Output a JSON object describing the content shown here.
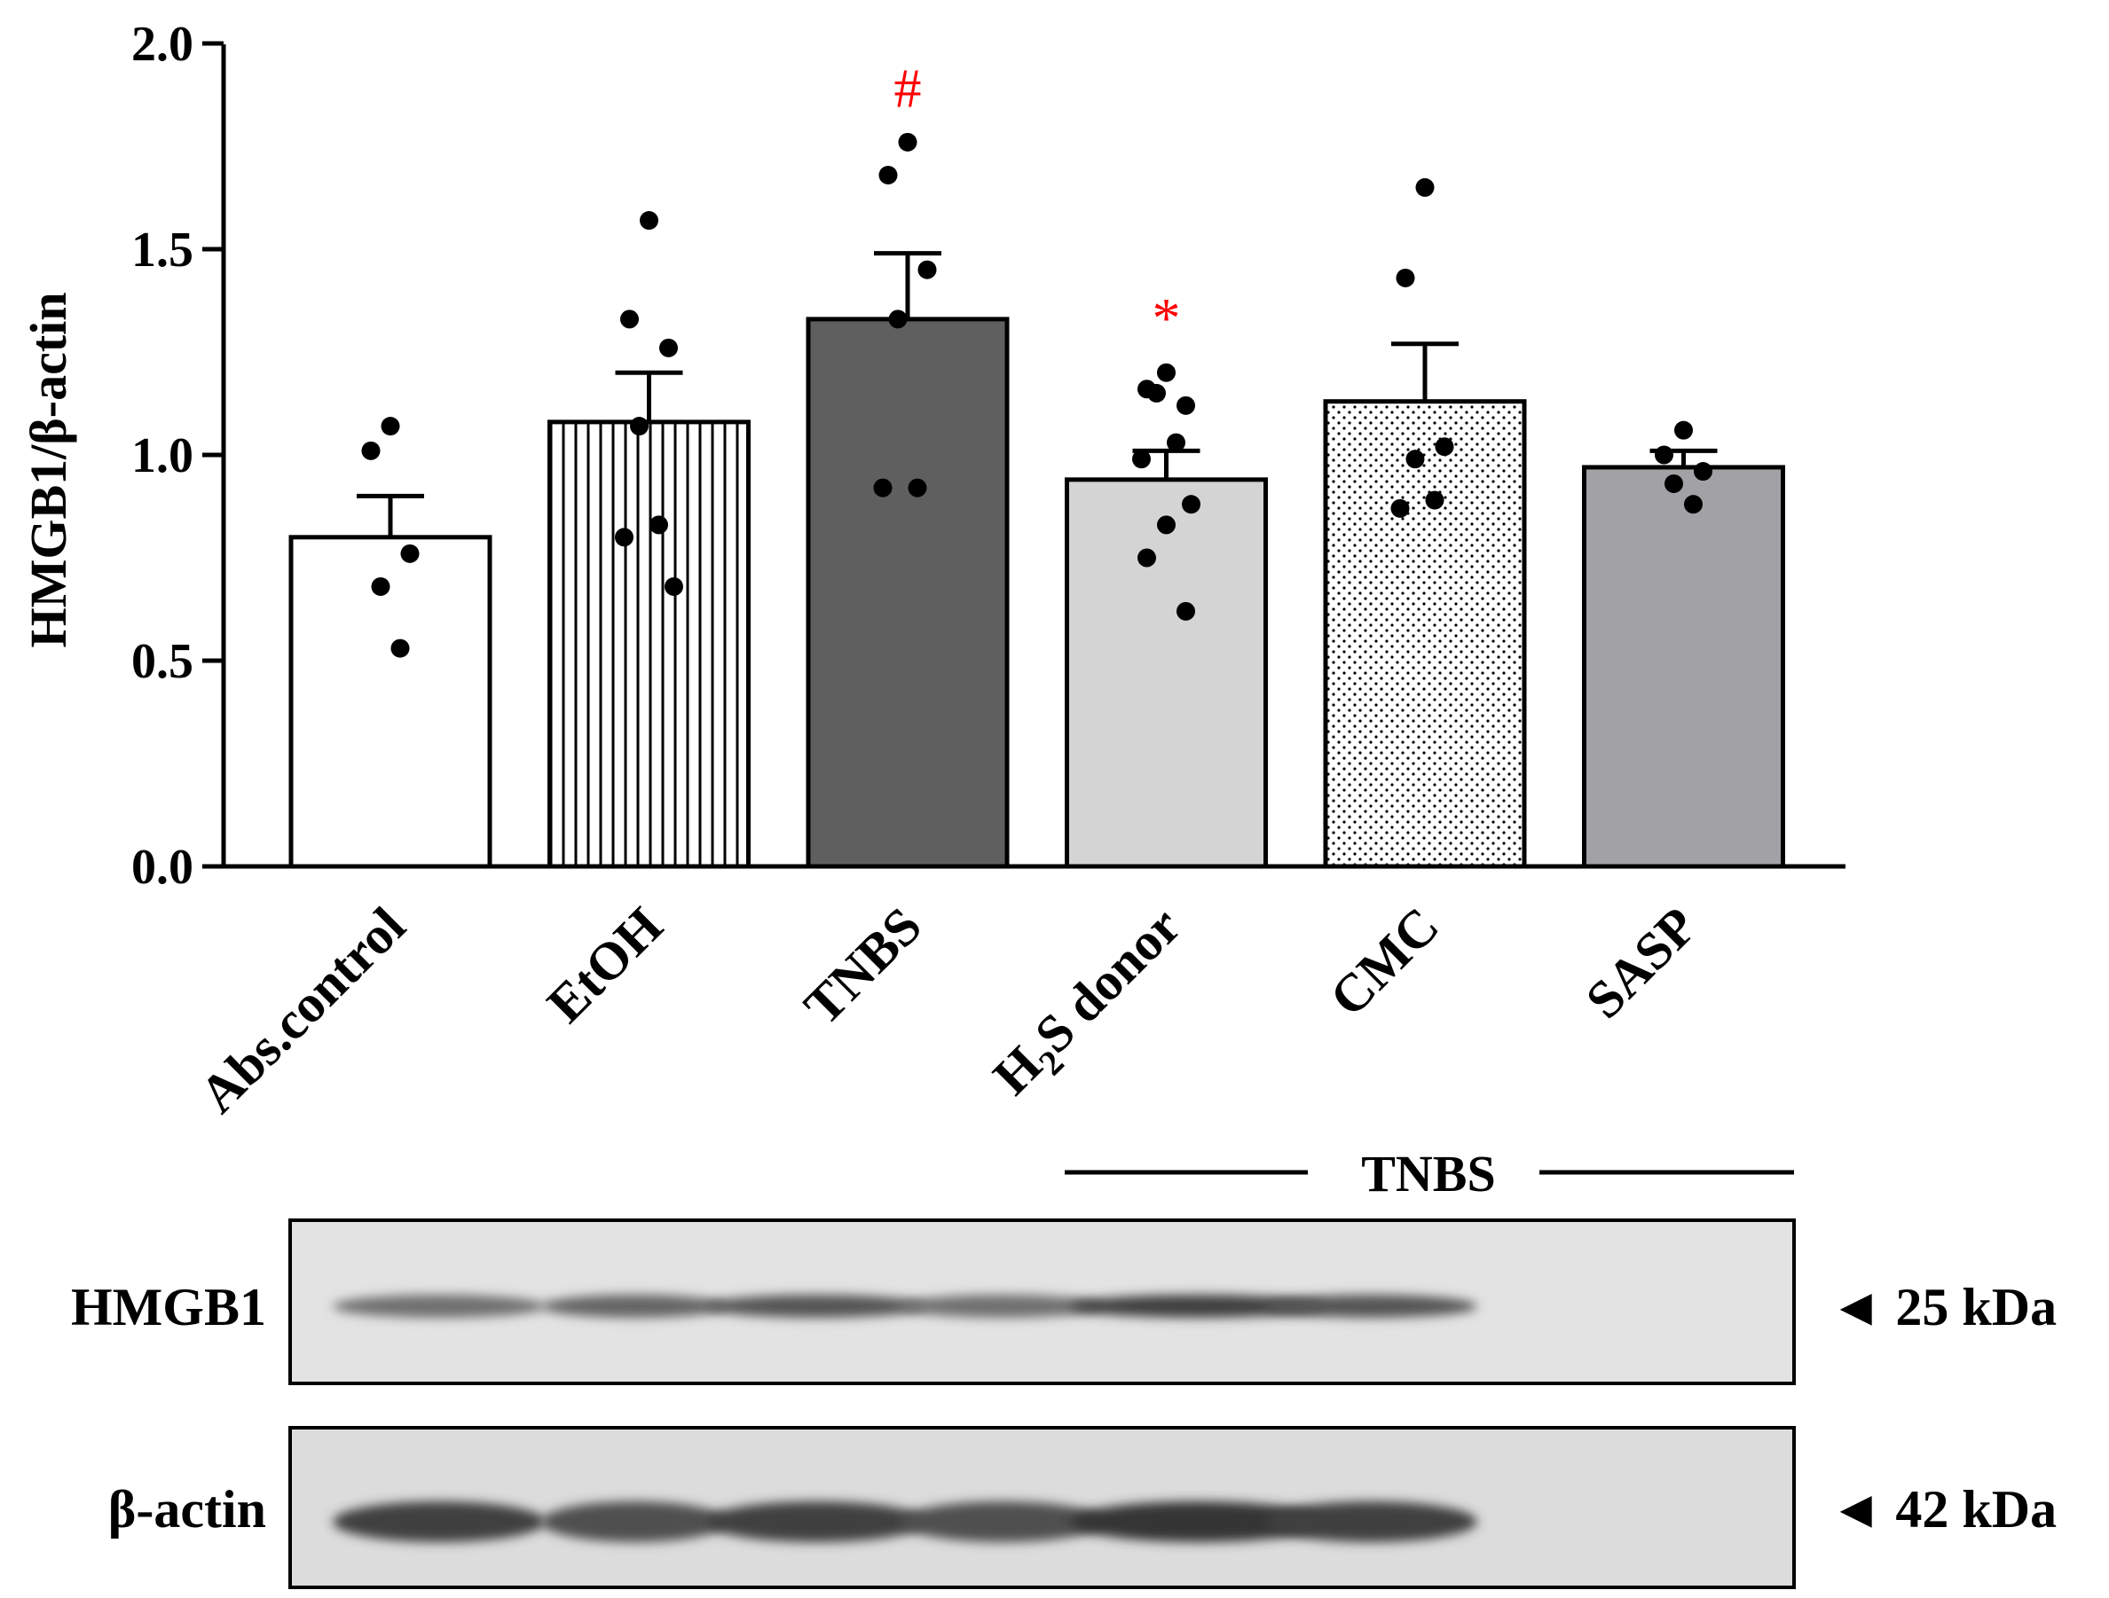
{
  "chart_data": {
    "type": "bar",
    "title": "",
    "xlabel": "",
    "ylabel": "HMGB1/β-actin",
    "ylim": [
      0,
      2.0
    ],
    "yticks": [
      "0.0",
      "0.5",
      "1.0",
      "1.5",
      "2.0"
    ],
    "categories": [
      {
        "label": "Abs.control"
      },
      {
        "label": "EtOH"
      },
      {
        "label": "TNBS"
      },
      {
        "label_main": "H",
        "label_sub": "2",
        "label_rest": "S donor"
      },
      {
        "label": "CMC"
      },
      {
        "label": "SASP"
      }
    ],
    "values": [
      0.8,
      1.08,
      1.33,
      0.94,
      1.13,
      0.97
    ],
    "errors": [
      0.1,
      0.12,
      0.16,
      0.07,
      0.14,
      0.04
    ],
    "points": [
      [
        1.07,
        1.01,
        0.76,
        0.68,
        0.53
      ],
      [
        1.57,
        1.33,
        1.26,
        1.07,
        0.83,
        0.8,
        0.68
      ],
      [
        1.76,
        1.68,
        1.45,
        1.33,
        0.92,
        0.92
      ],
      [
        1.2,
        1.16,
        1.12,
        1.15,
        1.03,
        0.99,
        0.88,
        0.83,
        0.75,
        0.62
      ],
      [
        1.65,
        1.43,
        1.02,
        0.99,
        0.89,
        0.87
      ],
      [
        1.06,
        1.0,
        0.96,
        0.93,
        0.88
      ]
    ],
    "fills": [
      "white",
      "vertical-lines",
      "#5f5f5f",
      "#d4d4d4",
      "dots",
      "#a2a2a6"
    ],
    "annotations": [
      {
        "category_index": 2,
        "text": "#",
        "color": "#ff0000"
      },
      {
        "category_index": 3,
        "text": "*",
        "color": "#ff0000"
      }
    ],
    "group_label": "TNBS",
    "group_span": [
      3,
      5
    ]
  },
  "blot": {
    "rows": [
      {
        "label": "HMGB1",
        "size": "◄ 25 kDa",
        "intensity": [
          0.55,
          0.62,
          0.72,
          0.55,
          0.85,
          0.72
        ]
      },
      {
        "label": "β-actin",
        "size": "◄ 42 kDa",
        "intensity": [
          0.85,
          0.75,
          0.85,
          0.75,
          0.92,
          0.85
        ]
      }
    ]
  }
}
